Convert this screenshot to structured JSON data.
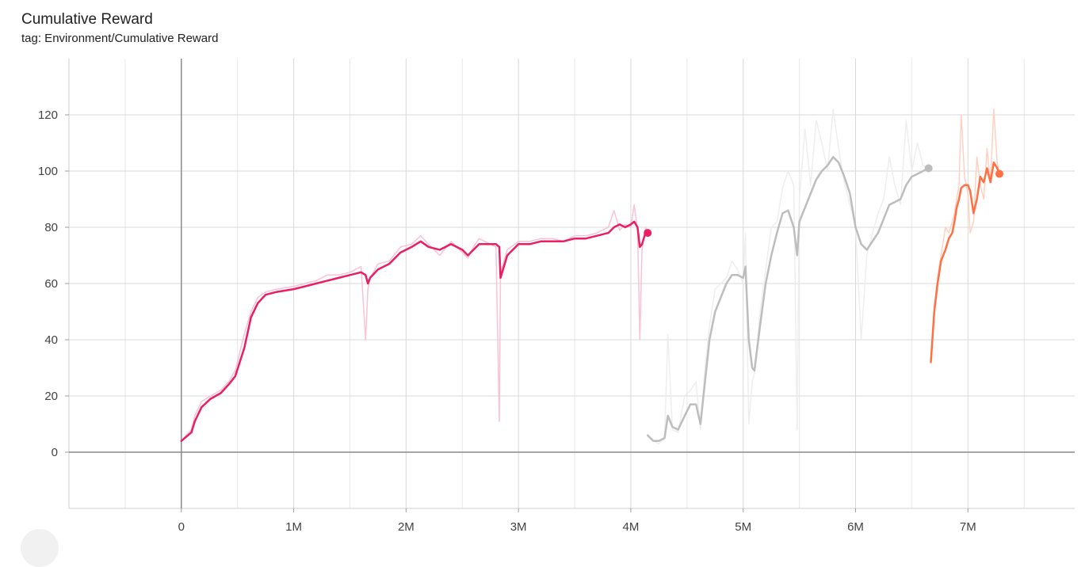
{
  "title": "Cumulative Reward",
  "subtitle": "tag: Environment/Cumulative Reward",
  "chart_data": {
    "type": "line",
    "title": "Cumulative Reward",
    "subtitle": "tag: Environment/Cumulative Reward",
    "xlabel": "",
    "ylabel": "",
    "xlim": [
      -1000000,
      7950000
    ],
    "ylim": [
      -20,
      140
    ],
    "x_ticks": [
      0,
      1000000,
      2000000,
      3000000,
      4000000,
      5000000,
      6000000,
      7000000
    ],
    "x_tick_labels": [
      "0",
      "1M",
      "2M",
      "3M",
      "4M",
      "5M",
      "6M",
      "7M"
    ],
    "y_ticks": [
      0,
      20,
      40,
      60,
      80,
      100,
      120
    ],
    "y_tick_labels": [
      "0",
      "20",
      "40",
      "60",
      "80",
      "100",
      "120"
    ],
    "grid": true,
    "legend": "none",
    "series": [
      {
        "color": "#e91e63",
        "raw_color": "#f8bbd0",
        "x": [
          0,
          90000,
          120000,
          180000,
          260000,
          350000,
          420000,
          480000,
          560000,
          620000,
          680000,
          750000,
          850000,
          1000000,
          1100000,
          1200000,
          1300000,
          1400000,
          1500000,
          1600000,
          1640000,
          1660000,
          1680000,
          1750000,
          1850000,
          1950000,
          2050000,
          2130000,
          2200000,
          2300000,
          2400000,
          2500000,
          2550000,
          2600000,
          2650000,
          2700000,
          2800000,
          2830000,
          2840000,
          2900000,
          3000000,
          3100000,
          3200000,
          3300000,
          3400000,
          3500000,
          3600000,
          3700000,
          3800000,
          3850000,
          3900000,
          3950000,
          4000000,
          4030000,
          4060000,
          4080000,
          4100000,
          4130000,
          4150000
        ],
        "y": [
          4,
          7,
          11,
          16,
          19,
          21,
          24,
          27,
          37,
          48,
          53,
          56,
          57,
          58,
          59,
          60,
          61,
          62,
          63,
          64,
          63,
          60,
          62,
          65,
          67,
          71,
          73,
          75,
          73,
          72,
          74,
          72,
          70,
          72,
          74,
          74,
          74,
          73,
          62,
          70,
          74,
          74,
          75,
          75,
          75,
          76,
          76,
          77,
          78,
          80,
          81,
          80,
          81,
          82,
          80,
          73,
          74,
          78,
          78
        ],
        "raw_y": [
          4,
          8,
          13,
          18,
          20,
          22,
          25,
          29,
          42,
          50,
          55,
          57,
          58,
          59,
          60,
          61,
          63,
          63,
          64,
          66,
          40,
          58,
          62,
          67,
          68,
          73,
          74,
          77,
          74,
          70,
          75,
          71,
          69,
          73,
          76,
          75,
          73,
          11,
          64,
          72,
          75,
          75,
          76,
          76,
          75,
          77,
          77,
          78,
          80,
          86,
          79,
          81,
          80,
          88,
          79,
          40,
          72,
          80,
          78
        ]
      },
      {
        "color": "#bdbdbd",
        "raw_color": "#ececec",
        "x": [
          4150000,
          4200000,
          4250000,
          4300000,
          4330000,
          4370000,
          4420000,
          4480000,
          4530000,
          4580000,
          4620000,
          4660000,
          4700000,
          4750000,
          4800000,
          4850000,
          4900000,
          4950000,
          5000000,
          5020000,
          5050000,
          5080000,
          5100000,
          5150000,
          5200000,
          5250000,
          5300000,
          5350000,
          5400000,
          5450000,
          5480000,
          5500000,
          5550000,
          5600000,
          5650000,
          5700000,
          5750000,
          5800000,
          5850000,
          5900000,
          5950000,
          6000000,
          6050000,
          6100000,
          6150000,
          6200000,
          6250000,
          6300000,
          6350000,
          6400000,
          6450000,
          6500000,
          6550000,
          6600000,
          6650000
        ],
        "y": [
          6,
          4,
          4,
          5,
          13,
          9,
          8,
          13,
          17,
          17,
          10,
          25,
          40,
          50,
          55,
          60,
          63,
          63,
          62,
          66,
          40,
          30,
          29,
          45,
          60,
          70,
          78,
          85,
          86,
          80,
          70,
          82,
          87,
          92,
          97,
          100,
          102,
          105,
          103,
          98,
          92,
          80,
          74,
          72,
          75,
          78,
          83,
          88,
          89,
          90,
          95,
          98,
          99,
          100,
          101
        ],
        "raw_y": [
          6,
          4,
          3,
          5,
          42,
          8,
          7,
          20,
          22,
          25,
          8,
          30,
          45,
          58,
          60,
          62,
          68,
          65,
          60,
          78,
          10,
          25,
          28,
          50,
          65,
          80,
          82,
          94,
          100,
          95,
          8,
          90,
          115,
          95,
          118,
          110,
          100,
          122,
          108,
          96,
          88,
          80,
          40,
          70,
          78,
          85,
          90,
          105,
          95,
          88,
          118,
          100,
          110,
          102,
          101
        ]
      },
      {
        "color": "#ff7043",
        "raw_color": "#ffccbc",
        "x": [
          6670000,
          6700000,
          6730000,
          6760000,
          6800000,
          6830000,
          6860000,
          6880000,
          6900000,
          6920000,
          6940000,
          6970000,
          7000000,
          7020000,
          7050000,
          7080000,
          7110000,
          7140000,
          7170000,
          7200000,
          7230000,
          7260000,
          7280000
        ],
        "y": [
          32,
          50,
          60,
          68,
          72,
          76,
          78,
          82,
          87,
          90,
          94,
          95,
          95,
          93,
          85,
          90,
          98,
          96,
          101,
          96,
          103,
          101,
          99
        ],
        "raw_y": [
          32,
          52,
          62,
          70,
          80,
          78,
          82,
          85,
          90,
          95,
          120,
          98,
          92,
          78,
          82,
          105,
          95,
          90,
          108,
          96,
          122,
          103,
          99
        ]
      }
    ]
  }
}
